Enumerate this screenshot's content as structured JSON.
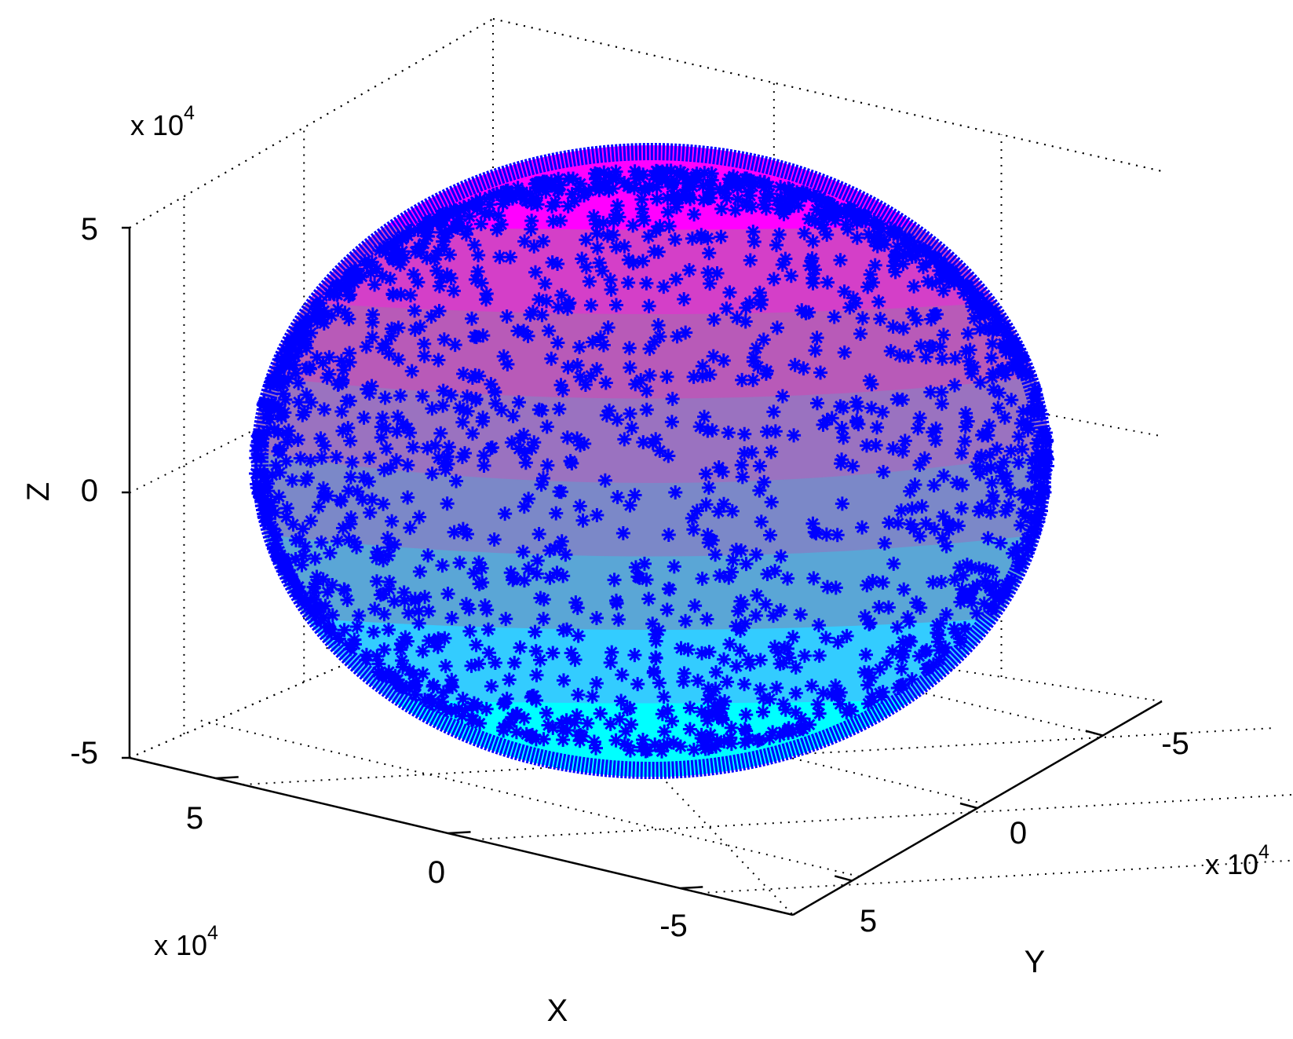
{
  "chart_data": {
    "type": "scatter3d",
    "title": "",
    "xlabel": "X",
    "ylabel": "Y",
    "zlabel": "Z",
    "x_exponent_label": {
      "base": "x 10",
      "power": "4"
    },
    "y_exponent_label": {
      "base": "x 10",
      "power": "4"
    },
    "z_exponent_label": {
      "base": "x 10",
      "power": "4"
    },
    "x_ticks": [
      {
        "value": 5,
        "label": "5"
      },
      {
        "value": 0,
        "label": "0"
      },
      {
        "value": -5,
        "label": "-5"
      }
    ],
    "y_ticks": [
      {
        "value": -5,
        "label": "-5"
      },
      {
        "value": 0,
        "label": "0"
      },
      {
        "value": 5,
        "label": "5"
      }
    ],
    "z_ticks": [
      {
        "value": 5,
        "label": "5"
      },
      {
        "value": 0,
        "label": "0"
      },
      {
        "value": -5,
        "label": "-5"
      }
    ],
    "xlim": [
      -7,
      7
    ],
    "ylim": [
      -7,
      7
    ],
    "zlim": [
      -5,
      5
    ],
    "grid": true,
    "surface": {
      "shape": "ellipsoid",
      "radius_xy": 6.5,
      "radius_z": 5.3,
      "colormap": "cool",
      "color_bands": [
        "#00ffff",
        "#33ccff",
        "#5aa6d6",
        "#7b88c8",
        "#9a72c0",
        "#b85ab8",
        "#d43fc8",
        "#ff00ff"
      ]
    },
    "series": [
      {
        "marker": "*",
        "color": "#0000ff",
        "point_count": 3000,
        "distribution": "points on ellipsoid surface"
      }
    ]
  }
}
